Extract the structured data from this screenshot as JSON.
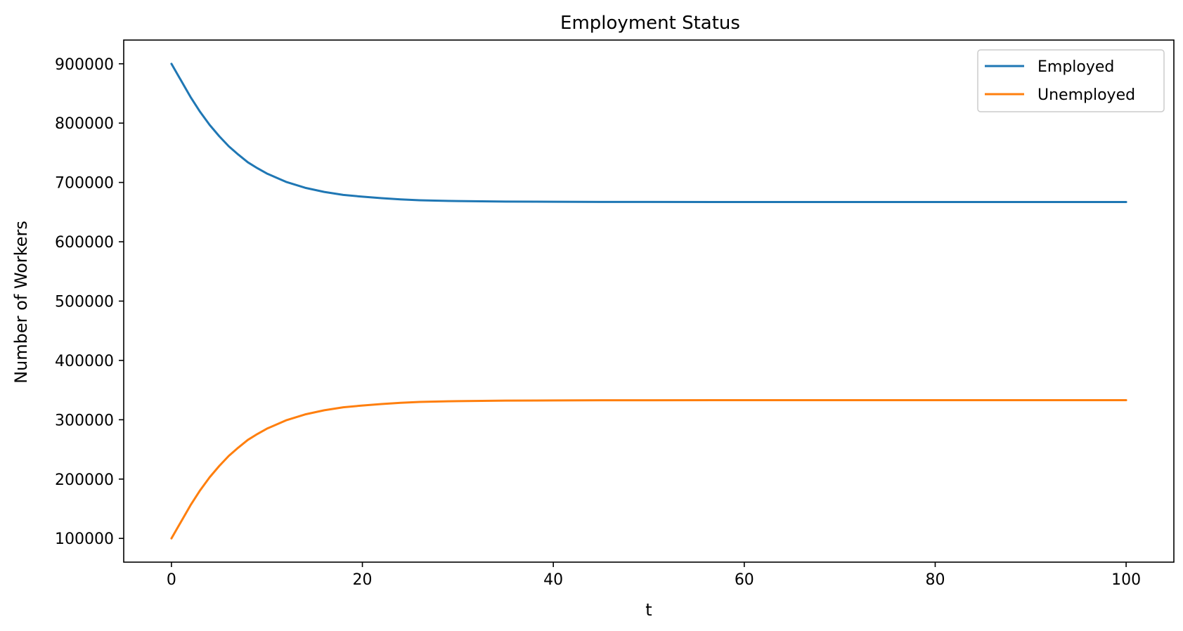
{
  "chart_data": {
    "type": "line",
    "title": "Employment Status",
    "xlabel": "t",
    "ylabel": "Number of Workers",
    "xlim": [
      -5,
      105
    ],
    "ylim": [
      60000,
      940000
    ],
    "x_ticks": [
      0,
      20,
      40,
      60,
      80,
      100
    ],
    "y_ticks": [
      100000,
      200000,
      300000,
      400000,
      500000,
      600000,
      700000,
      800000,
      900000
    ],
    "grid": false,
    "legend_position": "top-right",
    "x": [
      0,
      1,
      2,
      3,
      4,
      5,
      6,
      7,
      8,
      9,
      10,
      12,
      14,
      16,
      18,
      20,
      22,
      24,
      26,
      28,
      30,
      35,
      40,
      45,
      50,
      60,
      70,
      80,
      90,
      100
    ],
    "series": [
      {
        "name": "Employed",
        "color": "#1f77b4",
        "values": [
          900000,
          872000,
          844000,
          819000,
          797000,
          778000,
          761000,
          747000,
          734000,
          724000,
          715000,
          701000,
          691000,
          684000,
          679000,
          676000,
          673500,
          671500,
          670000,
          669200,
          668600,
          667800,
          667400,
          667200,
          667100,
          667000,
          667000,
          667000,
          667000,
          667000
        ]
      },
      {
        "name": "Unemployed",
        "color": "#ff7f0e",
        "values": [
          100000,
          128000,
          156000,
          181000,
          203000,
          222000,
          239000,
          253000,
          266000,
          276000,
          285000,
          299000,
          309000,
          316000,
          321000,
          324000,
          326500,
          328500,
          330000,
          330800,
          331400,
          332200,
          332600,
          332800,
          332900,
          333000,
          333000,
          333000,
          333000,
          333000
        ]
      }
    ]
  }
}
